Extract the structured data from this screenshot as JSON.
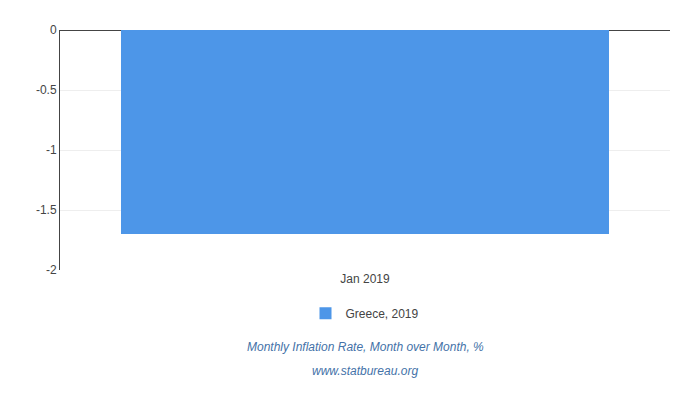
{
  "chart_data": {
    "type": "bar",
    "categories": [
      "Jan 2019"
    ],
    "series": [
      {
        "name": "Greece, 2019",
        "color": "#4d96e8",
        "values": [
          -1.7
        ]
      }
    ],
    "ylim": [
      -2,
      0
    ],
    "yticks": [
      0,
      -0.5,
      -1,
      -1.5,
      -2
    ],
    "grid": true,
    "legend": "bottom",
    "subtitle": [
      "Monthly Inflation Rate, Month over Month, %",
      "www.statbureau.org"
    ]
  }
}
